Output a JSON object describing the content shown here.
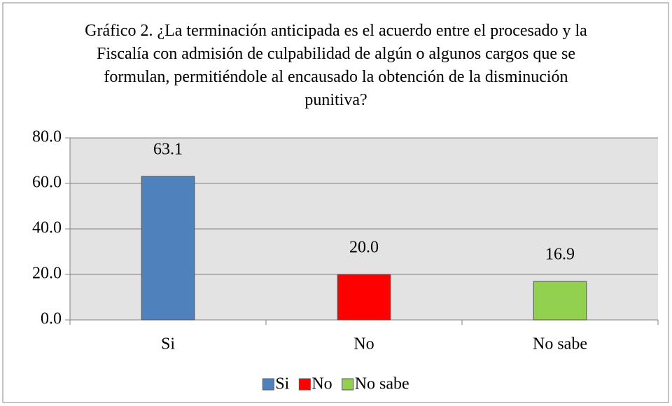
{
  "chart_data": {
    "type": "bar",
    "title": "Gráfico 2. ¿La terminación anticipada es el acuerdo entre el procesado y la Fiscalía con admisión de culpabilidad de algún o algunos cargos que se formulan, permitiéndole al encausado la obtención de la disminución punitiva?",
    "categories": [
      "Si",
      "No",
      "No sabe"
    ],
    "values": [
      63.1,
      20,
      16.9
    ],
    "value_labels": [
      "63.1",
      "20.0",
      "16.9"
    ],
    "colors": [
      "#4f81bd",
      "#ff0000",
      "#92d050"
    ],
    "ylim": [
      0,
      80
    ],
    "yticks": [
      {
        "value": 0,
        "label": "0.0"
      },
      {
        "value": 20,
        "label": "20.0"
      },
      {
        "value": 40,
        "label": "40.0"
      },
      {
        "value": 60,
        "label": "60.0"
      },
      {
        "value": 80,
        "label": "80.0"
      }
    ],
    "grid": true,
    "legend": "bottom"
  }
}
